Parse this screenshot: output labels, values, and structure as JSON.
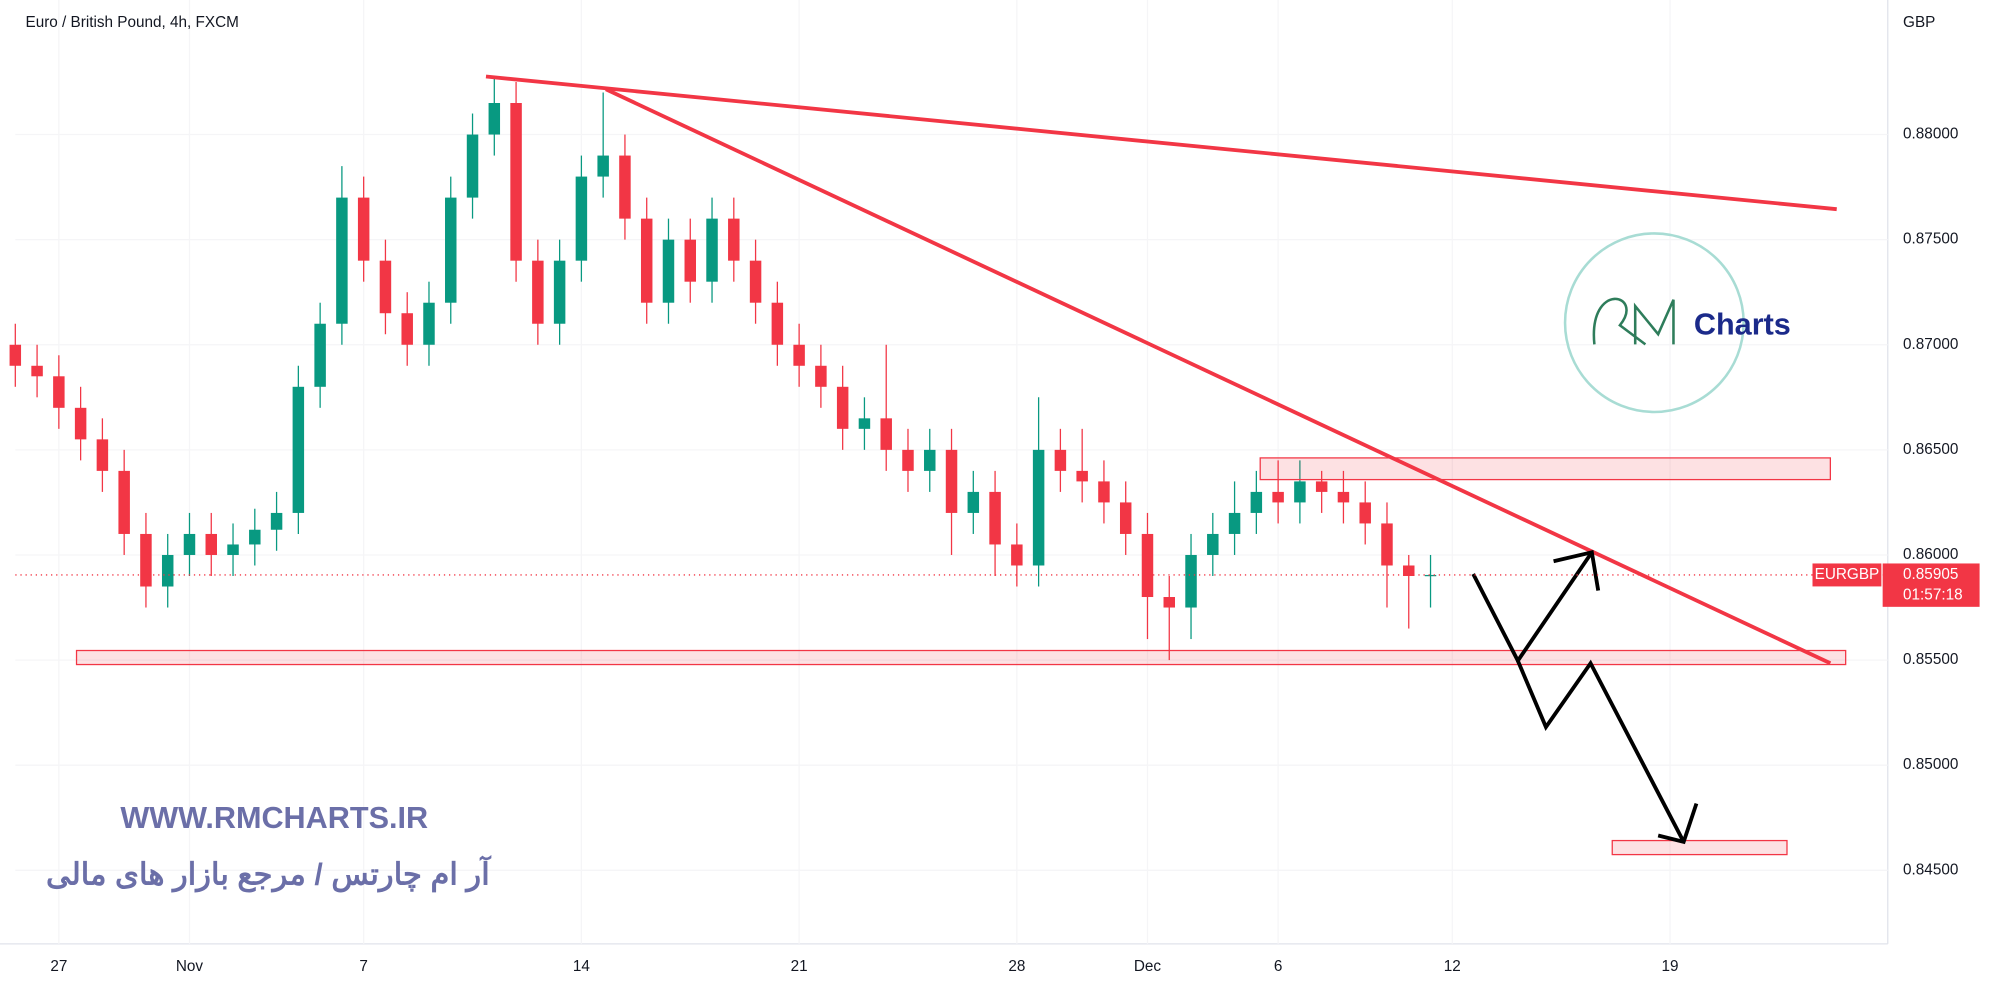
{
  "chart_data": {
    "type": "candlestick",
    "title": "Euro / British Pound, 4h, FXCM",
    "currency": "GBP",
    "up_color": "#089981",
    "down_color": "#f23645",
    "x": [
      -1,
      -0.5,
      0,
      0.5,
      1,
      1.5,
      2,
      2.5,
      3,
      3.5,
      4,
      4.5,
      5,
      5.5,
      6,
      6.5,
      7,
      7.5,
      8,
      8.5,
      9,
      9.5,
      10,
      10.5,
      11,
      11.5,
      12,
      12.5,
      13,
      13.5,
      14,
      14.5,
      15,
      15.5,
      16,
      16.5,
      17,
      17.5,
      18,
      18.5,
      19,
      19.5,
      20,
      20.5,
      21,
      21.5,
      22,
      22.5,
      23,
      23.5,
      24,
      24.5,
      25,
      25.5,
      26,
      26.5,
      27,
      27.5,
      28,
      28.5,
      29,
      29.5,
      30,
      30.5,
      31,
      31.5
    ],
    "open": [
      0.87,
      0.869,
      0.8685,
      0.867,
      0.8655,
      0.864,
      0.861,
      0.8585,
      0.86,
      0.861,
      0.86,
      0.8605,
      0.8612,
      0.862,
      0.868,
      0.871,
      0.877,
      0.874,
      0.8715,
      0.87,
      0.872,
      0.877,
      0.88,
      0.8815,
      0.874,
      0.871,
      0.874,
      0.878,
      0.879,
      0.876,
      0.872,
      0.875,
      0.873,
      0.876,
      0.874,
      0.872,
      0.87,
      0.869,
      0.868,
      0.866,
      0.8665,
      0.865,
      0.864,
      0.865,
      0.862,
      0.863,
      0.8605,
      0.8595,
      0.865,
      0.864,
      0.8635,
      0.8625,
      0.861,
      0.858,
      0.8575,
      0.86,
      0.861,
      0.862,
      0.863,
      0.8625,
      0.8635,
      0.863,
      0.8625,
      0.8615,
      0.8595,
      0.859
    ],
    "high": [
      0.871,
      0.87,
      0.8695,
      0.868,
      0.8665,
      0.865,
      0.862,
      0.861,
      0.862,
      0.862,
      0.8615,
      0.8622,
      0.863,
      0.869,
      0.872,
      0.8785,
      0.878,
      0.875,
      0.8725,
      0.873,
      0.878,
      0.881,
      0.8828,
      0.8825,
      0.875,
      0.875,
      0.879,
      0.882,
      0.88,
      0.877,
      0.876,
      0.876,
      0.877,
      0.877,
      0.875,
      0.873,
      0.871,
      0.87,
      0.869,
      0.8675,
      0.87,
      0.866,
      0.866,
      0.866,
      0.864,
      0.864,
      0.8615,
      0.8675,
      0.866,
      0.866,
      0.8645,
      0.8635,
      0.862,
      0.859,
      0.861,
      0.862,
      0.8635,
      0.864,
      0.8645,
      0.8645,
      0.864,
      0.864,
      0.8635,
      0.8625,
      0.86,
      0.86
    ],
    "low": [
      0.868,
      0.8675,
      0.866,
      0.8645,
      0.863,
      0.86,
      0.8575,
      0.8575,
      0.859,
      0.859,
      0.859,
      0.8595,
      0.8602,
      0.861,
      0.867,
      0.87,
      0.873,
      0.8705,
      0.869,
      0.869,
      0.871,
      0.876,
      0.879,
      0.873,
      0.87,
      0.87,
      0.873,
      0.877,
      0.875,
      0.871,
      0.871,
      0.872,
      0.872,
      0.873,
      0.871,
      0.869,
      0.868,
      0.867,
      0.865,
      0.865,
      0.864,
      0.863,
      0.863,
      0.86,
      0.861,
      0.859,
      0.8585,
      0.8585,
      0.863,
      0.8625,
      0.8615,
      0.86,
      0.856,
      0.855,
      0.856,
      0.859,
      0.86,
      0.861,
      0.8615,
      0.8615,
      0.862,
      0.8615,
      0.8605,
      0.8575,
      0.8565,
      0.8575
    ],
    "close": [
      0.869,
      0.8685,
      0.867,
      0.8655,
      0.864,
      0.861,
      0.8585,
      0.86,
      0.861,
      0.86,
      0.8605,
      0.8612,
      0.862,
      0.868,
      0.871,
      0.877,
      0.874,
      0.8715,
      0.87,
      0.872,
      0.877,
      0.88,
      0.8815,
      0.874,
      0.871,
      0.874,
      0.878,
      0.879,
      0.876,
      0.872,
      0.875,
      0.873,
      0.876,
      0.874,
      0.872,
      0.87,
      0.869,
      0.868,
      0.866,
      0.8665,
      0.865,
      0.864,
      0.865,
      0.862,
      0.863,
      0.8605,
      0.8595,
      0.865,
      0.864,
      0.8635,
      0.8625,
      0.861,
      0.858,
      0.8575,
      0.86,
      0.861,
      0.862,
      0.863,
      0.8625,
      0.8635,
      0.863,
      0.8625,
      0.8615,
      0.8595,
      0.859,
      0.85905
    ],
    "xlim": [
      -1,
      42
    ],
    "xticks": [
      {
        "value": 0,
        "label": "27"
      },
      {
        "value": 3,
        "label": "Nov"
      },
      {
        "value": 7,
        "label": "7"
      },
      {
        "value": 12,
        "label": "14"
      },
      {
        "value": 17,
        "label": "21"
      },
      {
        "value": 22,
        "label": "28"
      },
      {
        "value": 25,
        "label": "Dec"
      },
      {
        "value": 28,
        "label": "6"
      },
      {
        "value": 32,
        "label": "12"
      },
      {
        "value": 37,
        "label": "19"
      }
    ],
    "ylim": [
      0.8415,
      0.8864
    ],
    "yticks": [
      {
        "value": 0.845,
        "label": "0.84500"
      },
      {
        "value": 0.85,
        "label": "0.85000"
      },
      {
        "value": 0.855,
        "label": "0.85500"
      },
      {
        "value": 0.86,
        "label": "0.86000"
      },
      {
        "value": 0.865,
        "label": "0.86500"
      },
      {
        "value": 0.87,
        "label": "0.87000"
      },
      {
        "value": 0.875,
        "label": "0.87500"
      },
      {
        "value": 0.88,
        "label": "0.88000"
      }
    ],
    "last_price": {
      "symbol": "EURGBP",
      "value": 0.85905,
      "countdown": "01:57:18"
    },
    "watermark": {
      "logo": "Charts",
      "url": "WWW.RMCHARTS.IR",
      "tagline": "آر ام چارتس / مرجع بازار های مالی"
    }
  }
}
